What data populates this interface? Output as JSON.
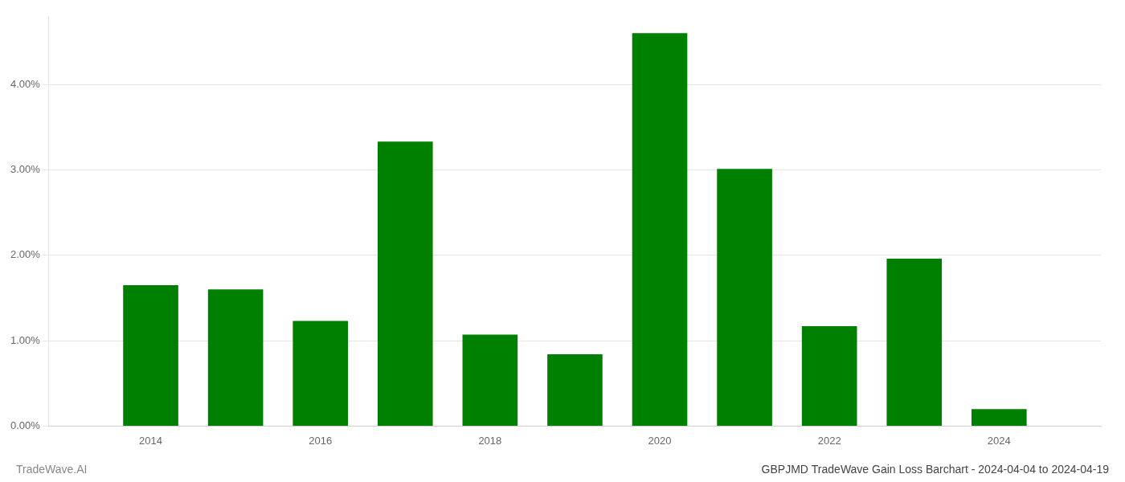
{
  "chart_data": {
    "type": "bar",
    "title": "GBPJMD TradeWave Gain Loss Barchart - 2024-04-04 to 2024-04-19",
    "annotations": [
      "TradeWave.AI"
    ],
    "x": [
      2014,
      2015,
      2016,
      2017,
      2018,
      2019,
      2020,
      2021,
      2022,
      2023,
      2024
    ],
    "values": [
      0.0165,
      0.016,
      0.0123,
      0.0333,
      0.0107,
      0.0084,
      0.046,
      0.0301,
      0.0117,
      0.0196,
      0.002
    ],
    "color": "#008000",
    "xlim": [
      2012.8,
      2025.2
    ],
    "xticks": [
      2014,
      2016,
      2018,
      2020,
      2022,
      2024
    ],
    "ylim": [
      0.0,
      0.048
    ],
    "yticks": [
      {
        "value": 0,
        "label": "0.00%"
      },
      {
        "value": 0.01,
        "label": "1.00%"
      },
      {
        "value": 0.02,
        "label": "2.00%"
      },
      {
        "value": 0.03,
        "label": "3.00%"
      },
      {
        "value": 0.04,
        "label": "4.00%"
      }
    ],
    "grid": true
  }
}
